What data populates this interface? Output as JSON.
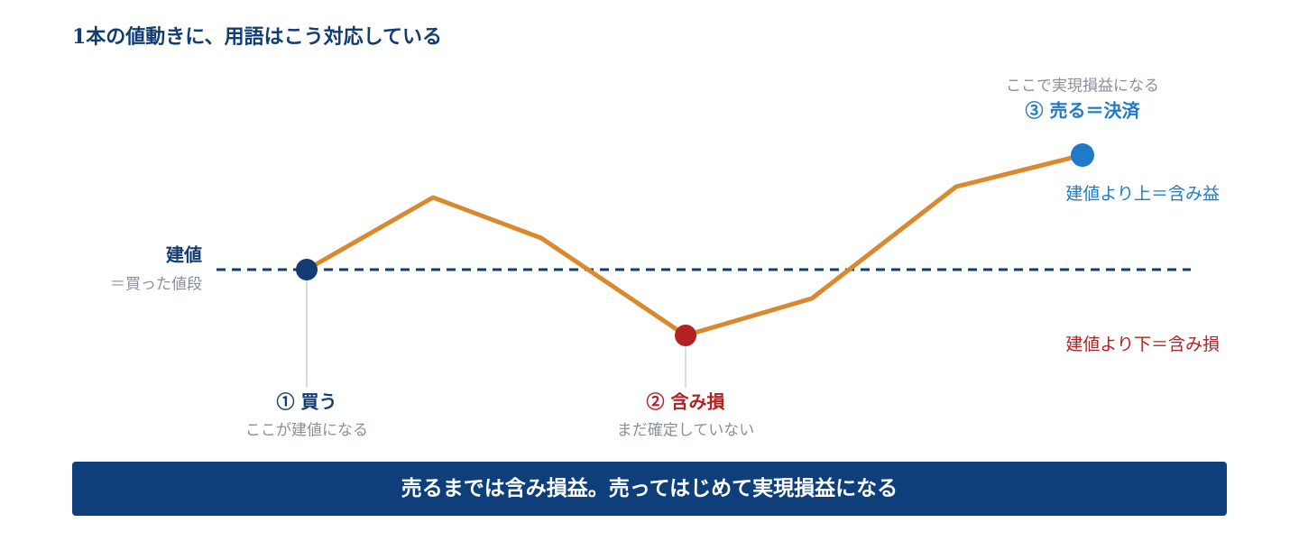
{
  "title": "1本の値動きに、用語はこう対応している",
  "baseline": {
    "label": "建値",
    "sublabel": "＝買った値段"
  },
  "points": [
    {
      "label": "① 買う",
      "note": "ここが建値になる"
    },
    {
      "label": "② 含み損",
      "note": "まだ確定していない"
    },
    {
      "label": "③ 売る＝決済",
      "note": "ここで実現損益になる"
    }
  ],
  "zones": {
    "above": "建値より上＝含み益",
    "below": "建値より下＝含み損"
  },
  "footer": "売るまでは含み損益。売ってはじめて実現損益になる"
}
